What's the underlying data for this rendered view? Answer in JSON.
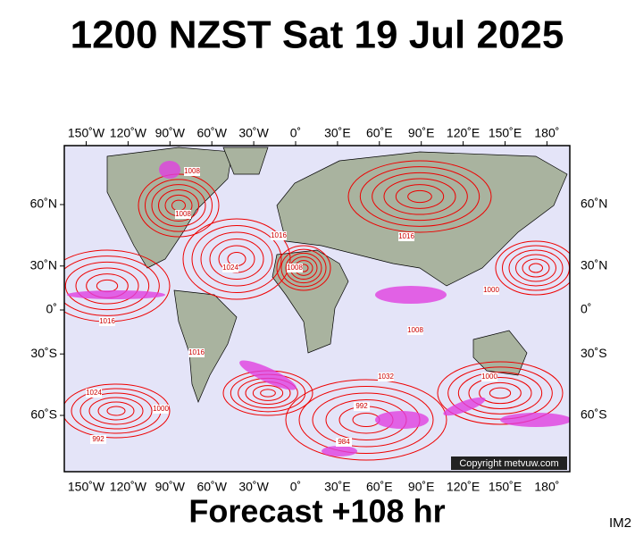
{
  "header": {
    "title": "1200 NZST Sat 19 Jul 2025"
  },
  "map": {
    "lon_ticks": [
      {
        "value": -150,
        "label": "150˚W"
      },
      {
        "value": -120,
        "label": "120˚W"
      },
      {
        "value": -90,
        "label": "90˚W"
      },
      {
        "value": -60,
        "label": "60˚W"
      },
      {
        "value": -30,
        "label": "30˚W"
      },
      {
        "value": 0,
        "label": "0˚"
      },
      {
        "value": 30,
        "label": "30˚E"
      },
      {
        "value": 60,
        "label": "60˚E"
      },
      {
        "value": 90,
        "label": "90˚E"
      },
      {
        "value": 120,
        "label": "120˚E"
      },
      {
        "value": 150,
        "label": "150˚E"
      },
      {
        "value": 180,
        "label": "180˚"
      }
    ],
    "lat_ticks": [
      {
        "value": 60,
        "label": "60˚N"
      },
      {
        "value": 30,
        "label": "30˚N"
      },
      {
        "value": 0,
        "label": "0˚"
      },
      {
        "value": -30,
        "label": "30˚S"
      },
      {
        "value": -60,
        "label": "60˚S"
      }
    ],
    "isobar_labels": [
      "1008",
      "1008",
      "1016",
      "1024",
      "1008",
      "1016",
      "1000",
      "1016",
      "1032",
      "1024",
      "1000",
      "992",
      "1000",
      "992",
      "984",
      "1016",
      "1008"
    ],
    "copyright": "Copyright metvuw.com"
  },
  "footer": {
    "forecast": "Forecast +108 hr",
    "image_id": "IM2"
  }
}
